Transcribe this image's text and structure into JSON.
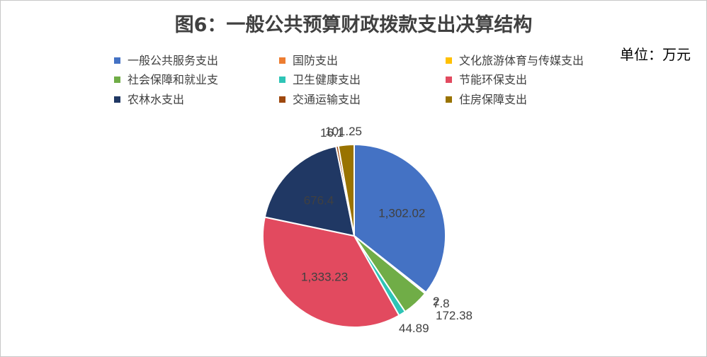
{
  "chart_data": {
    "type": "pie",
    "title": "图6：一般公共预算财政拨款支出决算结构",
    "unit": "单位：万元",
    "legend_position": "top",
    "slices": [
      {
        "name": "一般公共服务支出",
        "value": 1302.02,
        "label": "1,302.02",
        "color": "#4472C4"
      },
      {
        "name": "国防支出",
        "value": 2,
        "label": "2",
        "color": "#ED7D31"
      },
      {
        "name": "文化旅游体育与传媒支出",
        "value": 7.8,
        "label": "7.8",
        "color": "#FFC000"
      },
      {
        "name": "社会保障和就业支",
        "value": 172.38,
        "label": "172.38",
        "color": "#70AD47"
      },
      {
        "name": "卫生健康支出",
        "value": 44.89,
        "label": "44.89",
        "color": "#2EC4B6"
      },
      {
        "name": "节能环保支出",
        "value": 1333.23,
        "label": "1,333.23",
        "color": "#E24A5F"
      },
      {
        "name": "农林水支出",
        "value": 676.4,
        "label": "676.4",
        "color": "#203864"
      },
      {
        "name": "交通运输支出",
        "value": 16.1,
        "label": "16.1",
        "color": "#9E480E"
      },
      {
        "name": "住房保障支出",
        "value": 101.25,
        "label": "101.25",
        "color": "#997300"
      }
    ]
  }
}
